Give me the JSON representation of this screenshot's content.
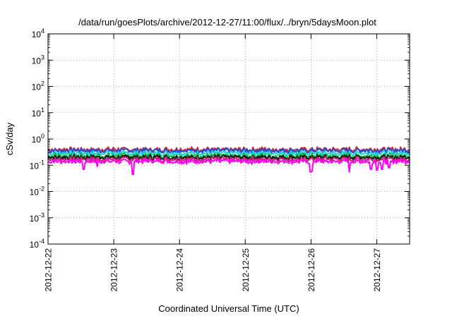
{
  "chart_data": {
    "type": "line",
    "title": "/data/run/goesPlots/archive/2012-12-27/11:00/flux/../bryn/5daysMoon.plot",
    "xlabel": "Coordinated Universal Time (UTC)",
    "ylabel": "cSv/day",
    "yscale": "log",
    "ylim": [
      0.0001,
      10000
    ],
    "xlim": [
      "2012-12-22T00:00",
      "2012-12-27T12:00"
    ],
    "grid": true,
    "x_ticks": [
      "2012-12-22",
      "2012-12-23",
      "2012-12-24",
      "2012-12-25",
      "2012-12-26",
      "2012-12-27"
    ],
    "y_ticks": [
      {
        "value": 0.0001,
        "base": "10",
        "exp": "-4"
      },
      {
        "value": 0.001,
        "base": "10",
        "exp": "-3"
      },
      {
        "value": 0.01,
        "base": "10",
        "exp": "-2"
      },
      {
        "value": 0.1,
        "base": "10",
        "exp": "-1"
      },
      {
        "value": 1,
        "base": "10",
        "exp": "0"
      },
      {
        "value": 10,
        "base": "10",
        "exp": "1"
      },
      {
        "value": 100,
        "base": "10",
        "exp": "2"
      },
      {
        "value": 1000,
        "base": "10",
        "exp": "3"
      },
      {
        "value": 10000,
        "base": "10",
        "exp": "4"
      }
    ],
    "series": [
      {
        "color": "#e8202a",
        "baseline": 0.4,
        "dips": []
      },
      {
        "color": "#1a4fe0",
        "baseline": 0.36,
        "dips": []
      },
      {
        "color": "#1ed0c8",
        "baseline": 0.29,
        "dips": []
      },
      {
        "color": "#10b040",
        "baseline": 0.23,
        "dips": []
      },
      {
        "color": "#111111",
        "baseline": 0.2,
        "dips": []
      },
      {
        "color": "#cc2277",
        "baseline": 0.17,
        "dips": []
      },
      {
        "color": "#ff00ff",
        "baseline": 0.14,
        "dips": [
          {
            "x": "2012-12-22T13:00",
            "value": 0.07
          },
          {
            "x": "2012-12-22T18:00",
            "value": 0.09
          },
          {
            "x": "2012-12-23T07:00",
            "value": 0.045
          },
          {
            "x": "2012-12-25T23:50",
            "value": 0.055
          },
          {
            "x": "2012-12-26T00:20",
            "value": 0.06
          },
          {
            "x": "2012-12-26T14:00",
            "value": 0.055
          },
          {
            "x": "2012-12-26T22:00",
            "value": 0.07
          },
          {
            "x": "2012-12-27T00:00",
            "value": 0.065
          },
          {
            "x": "2012-12-27T02:00",
            "value": 0.07
          },
          {
            "x": "2012-12-27T04:30",
            "value": 0.08
          }
        ]
      }
    ]
  }
}
